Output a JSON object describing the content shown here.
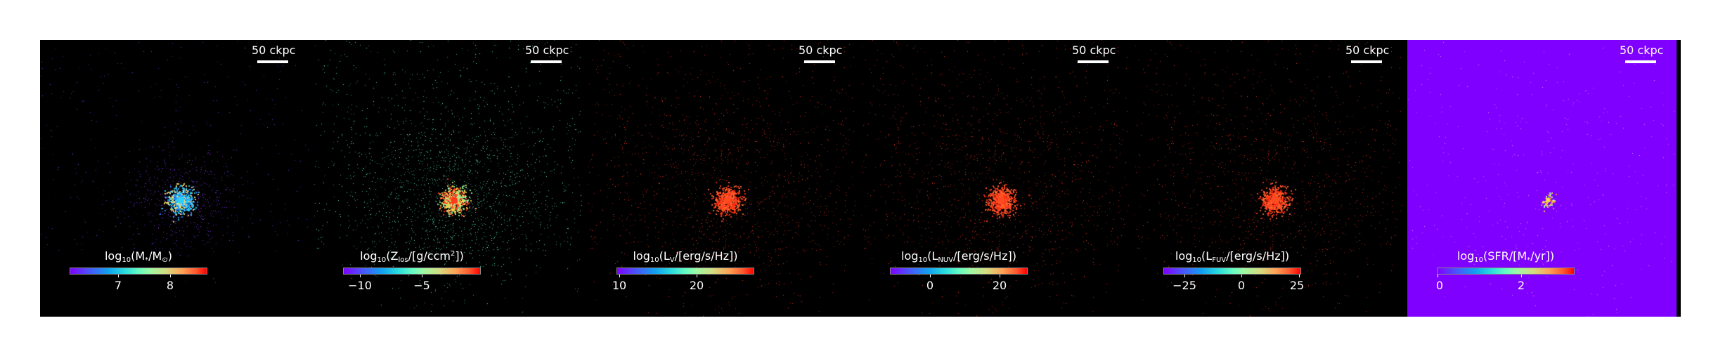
{
  "panels": [
    {
      "scale_label": "50 ckpc",
      "cbar_prefix": "log",
      "cbar_sub": "10",
      "cbar_mid": "(M",
      "cbar_mid_sub": "*",
      "cbar_mid2": "/M",
      "cbar_mid2_sub": "⊙",
      "cbar_mid2_sup": "",
      "cbar_suffix": ")",
      "ticks": [
        "7",
        "8"
      ],
      "background": "#000000",
      "points_color": "#8a3bff",
      "core_colors": [
        "#2ad0ff",
        "#1a8cff",
        "#ffe070"
      ]
    },
    {
      "scale_label": "50 ckpc",
      "cbar_prefix": "log",
      "cbar_sub": "10",
      "cbar_mid": "(Z",
      "cbar_mid_sub": "los",
      "cbar_mid2": "/[g/ccm",
      "cbar_mid2_sub": "",
      "cbar_mid2_sup": "2",
      "cbar_suffix": "])",
      "ticks": [
        "−10",
        "−5"
      ],
      "background": "#000000",
      "points_color": "#5ef2c8",
      "core_colors": [
        "#ff3b1e",
        "#ffd24a",
        "#8ff7a0"
      ]
    },
    {
      "scale_label": "50 ckpc",
      "cbar_prefix": "log",
      "cbar_sub": "10",
      "cbar_mid": "(L",
      "cbar_mid_sub": "V",
      "cbar_mid2": "/[erg/s/Hz])",
      "cbar_mid2_sub": "",
      "cbar_mid2_sup": "",
      "cbar_suffix": "",
      "ticks": [
        "10",
        "20"
      ],
      "background": "#000000",
      "points_color": "#ff3a1f",
      "core_colors": [
        "#ff4a22",
        "#ff6a30",
        "#ff2a10"
      ]
    },
    {
      "scale_label": "50 ckpc",
      "cbar_prefix": "log",
      "cbar_sub": "10",
      "cbar_mid": "(L",
      "cbar_mid_sub": "NUV",
      "cbar_mid2": "/[erg/s/Hz])",
      "cbar_mid2_sub": "",
      "cbar_mid2_sup": "",
      "cbar_suffix": "",
      "ticks": [
        "0",
        "20"
      ],
      "background": "#000000",
      "points_color": "#ff3a1f",
      "core_colors": [
        "#ff4a22",
        "#ff6a30",
        "#ff2a10"
      ]
    },
    {
      "scale_label": "50 ckpc",
      "cbar_prefix": "log",
      "cbar_sub": "10",
      "cbar_mid": "(L",
      "cbar_mid_sub": "FUV",
      "cbar_mid2": "/[erg/s/Hz])",
      "cbar_mid2_sub": "",
      "cbar_mid2_sup": "",
      "cbar_suffix": "",
      "ticks": [
        "−25",
        "0",
        "25"
      ],
      "background": "#000000",
      "points_color": "#ff3a1f",
      "core_colors": [
        "#ff4a22",
        "#ff6a30",
        "#ff2a10"
      ]
    },
    {
      "scale_label": "50 ckpc",
      "cbar_prefix": "log",
      "cbar_sub": "10",
      "cbar_mid": "(SFR/[M",
      "cbar_mid_sub": "*",
      "cbar_mid2": "/yr])",
      "cbar_mid2_sub": "",
      "cbar_mid2_sup": "",
      "cbar_suffix": "",
      "ticks": [
        "0",
        "2"
      ],
      "background": "#8000ff",
      "points_color": "#c9a8ff",
      "core_colors": [
        "#ffd84a",
        "#ff9a2e",
        "#a8ffb0"
      ]
    }
  ]
}
